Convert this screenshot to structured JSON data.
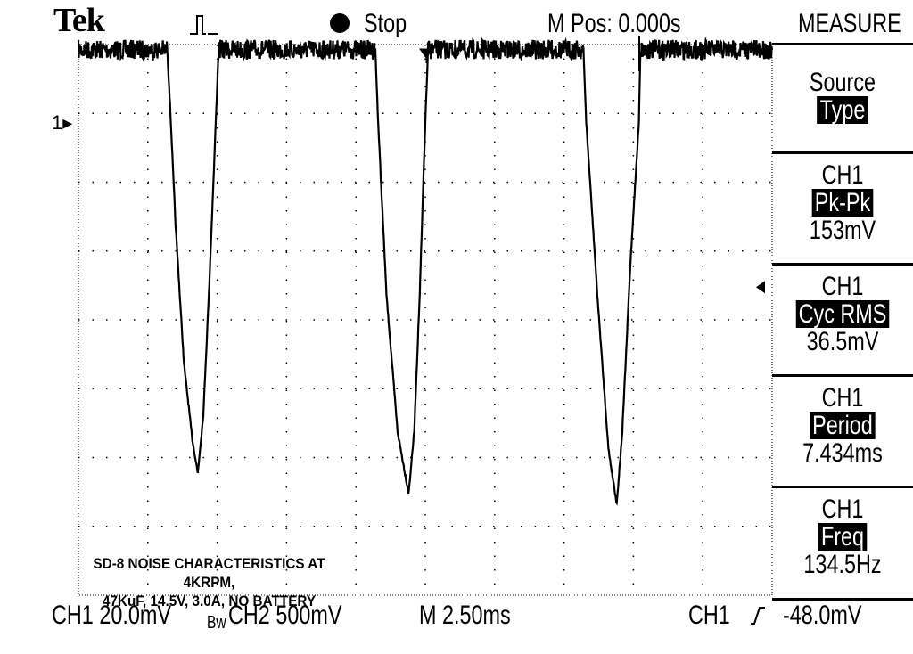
{
  "header": {
    "brand": "Tek",
    "acq_icon": "acquisition-waveform-icon",
    "run_state": "Stop",
    "run_state_icon": "stop-dot-icon",
    "m_pos": "M Pos: 0.000s",
    "menu_title": "MEASURE"
  },
  "side_menu": [
    {
      "line1": "Source",
      "highlight": "Type",
      "line3": ""
    },
    {
      "line1": "CH1",
      "highlight": "Pk-Pk",
      "line3": "153mV"
    },
    {
      "line1": "CH1",
      "highlight": "Cyc RMS",
      "line3": "36.5mV"
    },
    {
      "line1": "CH1",
      "highlight": "Period",
      "line3": "7.434ms"
    },
    {
      "line1": "CH1",
      "highlight": "Freq",
      "line3": "134.5Hz"
    }
  ],
  "status_bar": {
    "ch1_scale": "CH1  20.0mV",
    "bw_limit": "Bw",
    "ch2_scale": "CH2  500mV",
    "timebase": "M 2.50ms",
    "trigger": "CH1",
    "trigger_slope_icon": "rising-edge-icon",
    "trigger_level": "-48.0mV"
  },
  "annotation": {
    "line1": "SD-8 NOISE CHARACTERISTICS AT 4KRPM,",
    "line2": "47KuF, 14.5V, 3.0A, NO BATTERY"
  },
  "chart_data": {
    "type": "line",
    "title": "",
    "xlabel": "",
    "ylabel": "",
    "x_units": "ms",
    "y_units": "mV",
    "xlim": [
      -12.5,
      12.5
    ],
    "ylim": [
      -137.5,
      22.5
    ],
    "x_per_div": 2.5,
    "y_per_div": 20,
    "grid": true,
    "ch1_ground_marker": "1",
    "colors": {
      "trace": "#000000",
      "background": "#ffffff"
    },
    "series": [
      {
        "x": [
          -12.5,
          -9.3,
          -9.2,
          -9.0,
          -8.7,
          -8.4,
          -8.2,
          -8.0,
          -7.8,
          -7.6,
          -7.45,
          -1.8,
          -1.7,
          -1.4,
          -1.0,
          -0.6,
          -0.4,
          -0.2,
          0.0,
          0.1,
          5.7,
          5.8,
          6.2,
          6.6,
          6.9,
          7.1,
          7.4,
          7.7,
          7.75,
          12.5
        ],
        "y": [
          21,
          21,
          5,
          -30,
          -70,
          -92,
          -102,
          -85,
          -50,
          -10,
          21,
          21,
          0,
          -50,
          -90,
          -108,
          -90,
          -50,
          0,
          21,
          21,
          0,
          -50,
          -95,
          -111,
          -90,
          -40,
          0,
          21,
          21
        ]
      }
    ]
  }
}
